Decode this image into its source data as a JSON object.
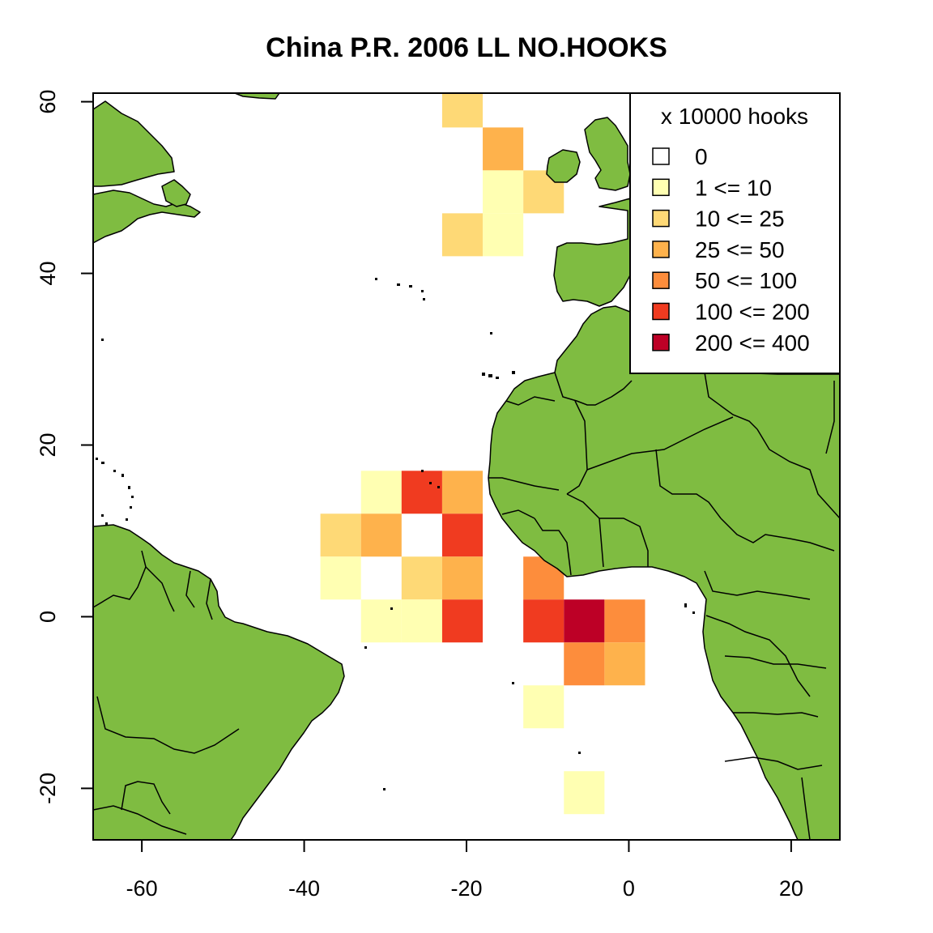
{
  "title": "China P.R. 2006 LL NO.HOOKS",
  "chart_data": {
    "type": "heatmap",
    "title": "China P.R. 2006 LL NO.HOOKS",
    "xlim": [
      -66,
      26
    ],
    "ylim": [
      -26,
      61
    ],
    "x_ticks": [
      -60,
      -40,
      -20,
      0,
      20
    ],
    "y_ticks": [
      -20,
      0,
      20,
      40,
      60
    ],
    "x_tick_labels": [
      "-60",
      "-40",
      "-20",
      "0",
      "20"
    ],
    "y_tick_labels": [
      "-20",
      "0",
      "20",
      "40",
      "60"
    ],
    "cell_size_deg": 5,
    "legend": {
      "title": "x 10000 hooks",
      "placement": "top-right",
      "entries": [
        {
          "label": "0",
          "color": "#ffffff"
        },
        {
          "label": "1 <= 10",
          "color": "#ffffb2"
        },
        {
          "label": "10 <= 25",
          "color": "#fed976"
        },
        {
          "label": "25 <= 50",
          "color": "#feb24c"
        },
        {
          "label": "50 <= 100",
          "color": "#fd8d3c"
        },
        {
          "label": "100 <= 200",
          "color": "#f03b20"
        },
        {
          "label": "200 <= 400",
          "color": "#bd0026"
        }
      ]
    },
    "land_color": "#7fbc41",
    "cells": [
      {
        "lon": -20.5,
        "lat": 59.5,
        "class": 2
      },
      {
        "lon": -15.5,
        "lat": 54.5,
        "class": 3
      },
      {
        "lon": -15.5,
        "lat": 49.5,
        "class": 1
      },
      {
        "lon": -10.5,
        "lat": 49.5,
        "class": 2
      },
      {
        "lon": -20.5,
        "lat": 44.5,
        "class": 2
      },
      {
        "lon": -15.5,
        "lat": 44.5,
        "class": 1
      },
      {
        "lon": -30.5,
        "lat": 14.5,
        "class": 1
      },
      {
        "lon": -25.5,
        "lat": 14.5,
        "class": 5
      },
      {
        "lon": -20.5,
        "lat": 14.5,
        "class": 3
      },
      {
        "lon": -35.5,
        "lat": 9.5,
        "class": 2
      },
      {
        "lon": -30.5,
        "lat": 9.5,
        "class": 3
      },
      {
        "lon": -20.5,
        "lat": 9.5,
        "class": 5
      },
      {
        "lon": -35.5,
        "lat": 4.5,
        "class": 1
      },
      {
        "lon": -25.5,
        "lat": 4.5,
        "class": 2
      },
      {
        "lon": -20.5,
        "lat": 4.5,
        "class": 3
      },
      {
        "lon": -10.5,
        "lat": 4.5,
        "class": 4
      },
      {
        "lon": -30.5,
        "lat": -0.5,
        "class": 1
      },
      {
        "lon": -25.5,
        "lat": -0.5,
        "class": 1
      },
      {
        "lon": -20.5,
        "lat": -0.5,
        "class": 5
      },
      {
        "lon": -10.5,
        "lat": -0.5,
        "class": 5
      },
      {
        "lon": -5.5,
        "lat": -0.5,
        "class": 6
      },
      {
        "lon": -0.5,
        "lat": -0.5,
        "class": 4
      },
      {
        "lon": -5.5,
        "lat": -5.5,
        "class": 4
      },
      {
        "lon": -0.5,
        "lat": -5.5,
        "class": 3
      },
      {
        "lon": -10.5,
        "lat": -10.5,
        "class": 1
      },
      {
        "lon": -5.5,
        "lat": -20.5,
        "class": 1
      }
    ]
  }
}
